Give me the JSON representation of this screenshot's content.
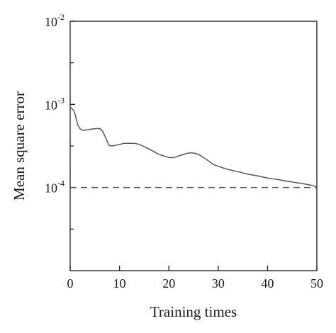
{
  "chart_data": {
    "type": "line",
    "title": "",
    "xlabel": "Training times",
    "ylabel": "Mean square error",
    "xlim": [
      0,
      50
    ],
    "ylim": [
      1e-05,
      0.01
    ],
    "yscale": "log",
    "grid": false,
    "x_ticks": [
      {
        "value": 0,
        "label": "0"
      },
      {
        "value": 10,
        "label": "10"
      },
      {
        "value": 20,
        "label": "20"
      },
      {
        "value": 30,
        "label": "30"
      },
      {
        "value": 40,
        "label": "40"
      },
      {
        "value": 50,
        "label": "50"
      }
    ],
    "y_ticks": [
      {
        "value": 0.01,
        "base": "10",
        "exp": "-2"
      },
      {
        "value": 0.001,
        "base": "10",
        "exp": "-3"
      },
      {
        "value": 0.0001,
        "base": "10",
        "exp": "-4"
      }
    ],
    "y_minor_ticks": [
      0.0031623,
      0.00031623,
      3.1623e-05
    ],
    "series": [
      {
        "color": "#555555",
        "style": "solid",
        "x": [
          0,
          0.8,
          1.5,
          2,
          2.5,
          3,
          4,
          5,
          6,
          6.5,
          7,
          7.5,
          8,
          9,
          10,
          11,
          12,
          13,
          14,
          15,
          16,
          17,
          18,
          19,
          20,
          21,
          22,
          23,
          24,
          25,
          26,
          27,
          28,
          29,
          30,
          32,
          34,
          36,
          38,
          40,
          42,
          44,
          46,
          48,
          49,
          50
        ],
        "y": [
          0.00092,
          0.00082,
          0.00058,
          0.00051,
          0.00049,
          0.00049,
          0.0005,
          0.00051,
          0.00051,
          0.00048,
          0.00042,
          0.00036,
          0.00032,
          0.00032,
          0.00033,
          0.00034,
          0.00034,
          0.00034,
          0.00033,
          0.00031,
          0.00029,
          0.00027,
          0.00025,
          0.00024,
          0.00023,
          0.00023,
          0.00024,
          0.00025,
          0.00026,
          0.00026,
          0.00025,
          0.00023,
          0.00021,
          0.00019,
          0.00018,
          0.000165,
          0.000155,
          0.000145,
          0.000138,
          0.00013,
          0.000125,
          0.000119,
          0.000114,
          0.000109,
          0.000106,
          0.000102
        ]
      },
      {
        "color": "#555555",
        "style": "dashed",
        "x": [
          0,
          50
        ],
        "y": [
          0.0001,
          0.0001
        ]
      }
    ]
  }
}
